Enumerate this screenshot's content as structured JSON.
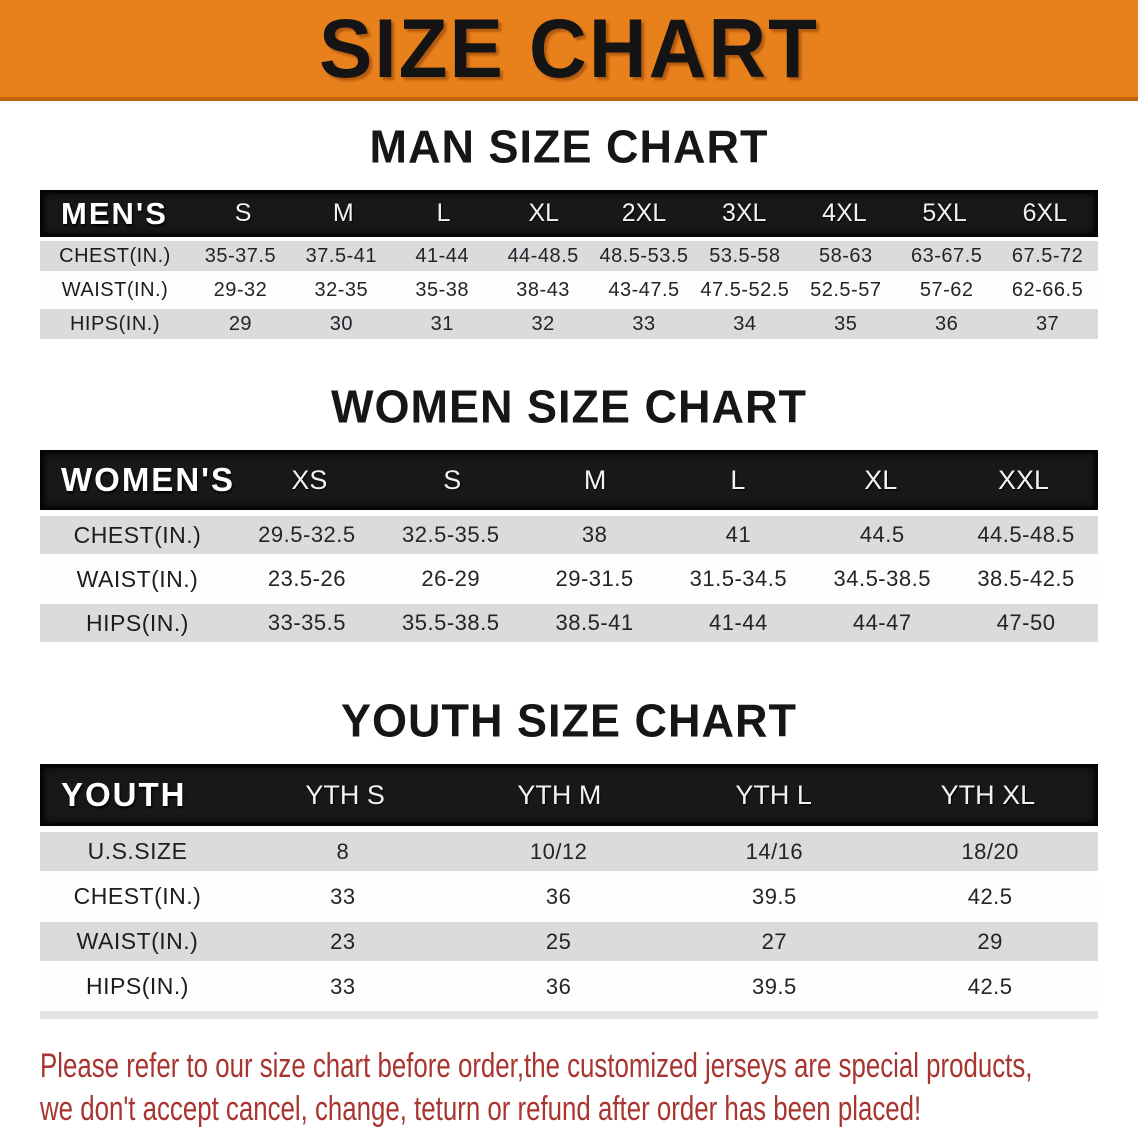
{
  "banner": {
    "title": "SIZE CHART"
  },
  "colors": {
    "banner_orange": "#E8811C",
    "bar_black": "#181818",
    "row_gray": "#DBDBDD",
    "note_red": "#A93530"
  },
  "sections": [
    {
      "heading": "MAN SIZE CHART",
      "table": {
        "header_label": "MEN'S",
        "columns": [
          "S",
          "M",
          "L",
          "XL",
          "2XL",
          "3XL",
          "4XL",
          "5XL",
          "6XL"
        ],
        "rows": [
          {
            "label": "CHEST(IN.)",
            "values": [
              "35-37.5",
              "37.5-41",
              "41-44",
              "44-48.5",
              "48.5-53.5",
              "53.5-58",
              "58-63",
              "63-67.5",
              "67.5-72"
            ]
          },
          {
            "label": "WAIST(IN.)",
            "values": [
              "29-32",
              "32-35",
              "35-38",
              "38-43",
              "43-47.5",
              "47.5-52.5",
              "52.5-57",
              "57-62",
              "62-66.5"
            ]
          },
          {
            "label": "HIPS(IN.)",
            "values": [
              "29",
              "30",
              "31",
              "32",
              "33",
              "34",
              "35",
              "36",
              "37"
            ]
          }
        ]
      }
    },
    {
      "heading": "WOMEN SIZE CHART",
      "table": {
        "header_label": "WOMEN'S",
        "columns": [
          "XS",
          "S",
          "M",
          "L",
          "XL",
          "XXL"
        ],
        "rows": [
          {
            "label": "CHEST(IN.)",
            "values": [
              "29.5-32.5",
              "32.5-35.5",
              "38",
              "41",
              "44.5",
              "44.5-48.5"
            ]
          },
          {
            "label": "WAIST(IN.)",
            "values": [
              "23.5-26",
              "26-29",
              "29-31.5",
              "31.5-34.5",
              "34.5-38.5",
              "38.5-42.5"
            ]
          },
          {
            "label": "HIPS(IN.)",
            "values": [
              "33-35.5",
              "35.5-38.5",
              "38.5-41",
              "41-44",
              "44-47",
              "47-50"
            ]
          }
        ]
      }
    },
    {
      "heading": "YOUTH SIZE CHART",
      "table": {
        "header_label": "YOUTH",
        "columns": [
          "YTH S",
          "YTH M",
          "YTH L",
          "YTH XL"
        ],
        "rows": [
          {
            "label": "U.S.SIZE",
            "values": [
              "8",
              "10/12",
              "14/16",
              "18/20"
            ]
          },
          {
            "label": "CHEST(IN.)",
            "values": [
              "33",
              "36",
              "39.5",
              "42.5"
            ]
          },
          {
            "label": "WAIST(IN.)",
            "values": [
              "23",
              "25",
              "27",
              "29"
            ]
          },
          {
            "label": "HIPS(IN.)",
            "values": [
              "33",
              "36",
              "39.5",
              "42.5"
            ]
          }
        ]
      }
    }
  ],
  "footer": {
    "line1": "Please refer to our size chart before order,the customized jerseys are special products,",
    "line2": "we don't accept cancel, change, teturn or refund after order has been placed!"
  }
}
